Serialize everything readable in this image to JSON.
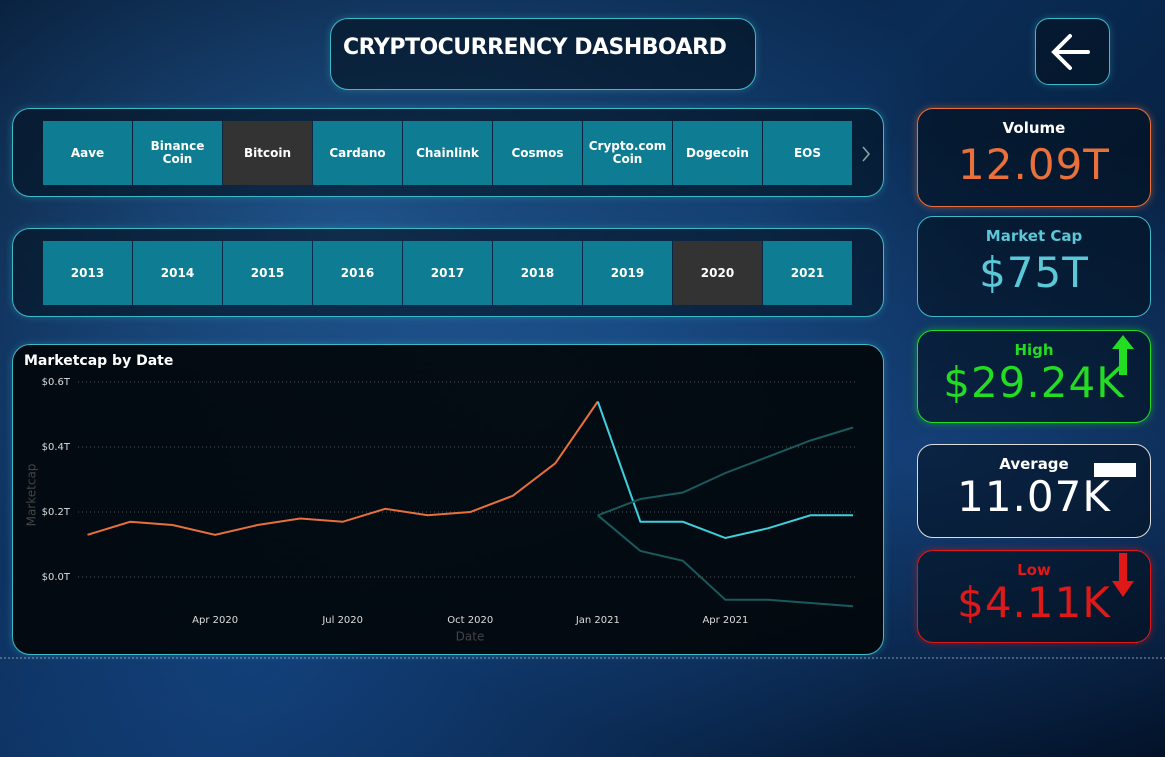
{
  "header": {
    "title": "CRYPTOCURRENCY DASHBOARD"
  },
  "coins": {
    "items": [
      "Aave",
      "Binance Coin",
      "Bitcoin",
      "Cardano",
      "Chainlink",
      "Cosmos",
      "Crypto.com Coin",
      "Dogecoin",
      "EOS"
    ],
    "selected_index": 2
  },
  "years": {
    "items": [
      "2013",
      "2014",
      "2015",
      "2016",
      "2017",
      "2018",
      "2019",
      "2020",
      "2021"
    ],
    "selected_index": 7
  },
  "kpis": [
    {
      "label": "Volume",
      "value": "12.09T"
    },
    {
      "label": "Market Cap",
      "value": "$75T"
    },
    {
      "label": "High",
      "value": "$29.24K"
    },
    {
      "label": "Average",
      "value": "11.07K"
    },
    {
      "label": "Low",
      "value": "$4.11K"
    }
  ],
  "chart": {
    "type": "line",
    "title": "Marketcap by Date",
    "x_label": "Date",
    "y_label": "Marketcap",
    "x": [
      "2020-01",
      "2020-02",
      "2020-03",
      "2020-04",
      "2020-05",
      "2020-06",
      "2020-07",
      "2020-08",
      "2020-09",
      "2020-10",
      "2020-11",
      "2020-12",
      "2021-01",
      "2021-02",
      "2021-03",
      "2021-04",
      "2021-05",
      "2021-06",
      "2021-07"
    ],
    "series": [
      {
        "color": "#e8703a",
        "values": [
          0.13,
          0.17,
          0.16,
          0.13,
          0.16,
          0.18,
          0.17,
          0.21,
          0.19,
          0.2,
          0.25,
          0.35,
          0.54,
          null,
          null,
          null,
          null,
          null,
          null
        ]
      },
      {
        "color": "#3fd0dc",
        "values": [
          null,
          null,
          null,
          null,
          null,
          null,
          null,
          null,
          null,
          null,
          null,
          null,
          0.54,
          0.17,
          0.17,
          0.12,
          0.15,
          0.19,
          0.19
        ]
      },
      {
        "color": "#1a5a5c",
        "values": [
          null,
          null,
          null,
          null,
          null,
          null,
          null,
          null,
          null,
          null,
          null,
          null,
          0.19,
          0.24,
          0.26,
          0.32,
          0.37,
          0.42,
          0.46
        ]
      },
      {
        "color": "#1a5a5c",
        "values": [
          null,
          null,
          null,
          null,
          null,
          null,
          null,
          null,
          null,
          null,
          null,
          null,
          0.19,
          0.08,
          0.05,
          -0.07,
          -0.07,
          -0.08,
          -0.09
        ]
      }
    ],
    "xlim": [
      "2019-12",
      "2021-07"
    ],
    "xticks": [
      {
        "value": "2020-04",
        "label": "Apr 2020"
      },
      {
        "value": "2020-07",
        "label": "Jul 2020"
      },
      {
        "value": "2020-10",
        "label": "Oct 2020"
      },
      {
        "value": "2021-01",
        "label": "Jan 2021"
      },
      {
        "value": "2021-04",
        "label": "Apr 2021"
      }
    ],
    "ylim": [
      -0.1,
      0.6
    ],
    "yticks": [
      {
        "value": 0,
        "label": "$0.0T"
      },
      {
        "value": 0.2,
        "label": "$0.2T"
      },
      {
        "value": 0.4,
        "label": "$0.4T"
      },
      {
        "value": 0.6,
        "label": "$0.6T"
      }
    ],
    "grid": true
  }
}
